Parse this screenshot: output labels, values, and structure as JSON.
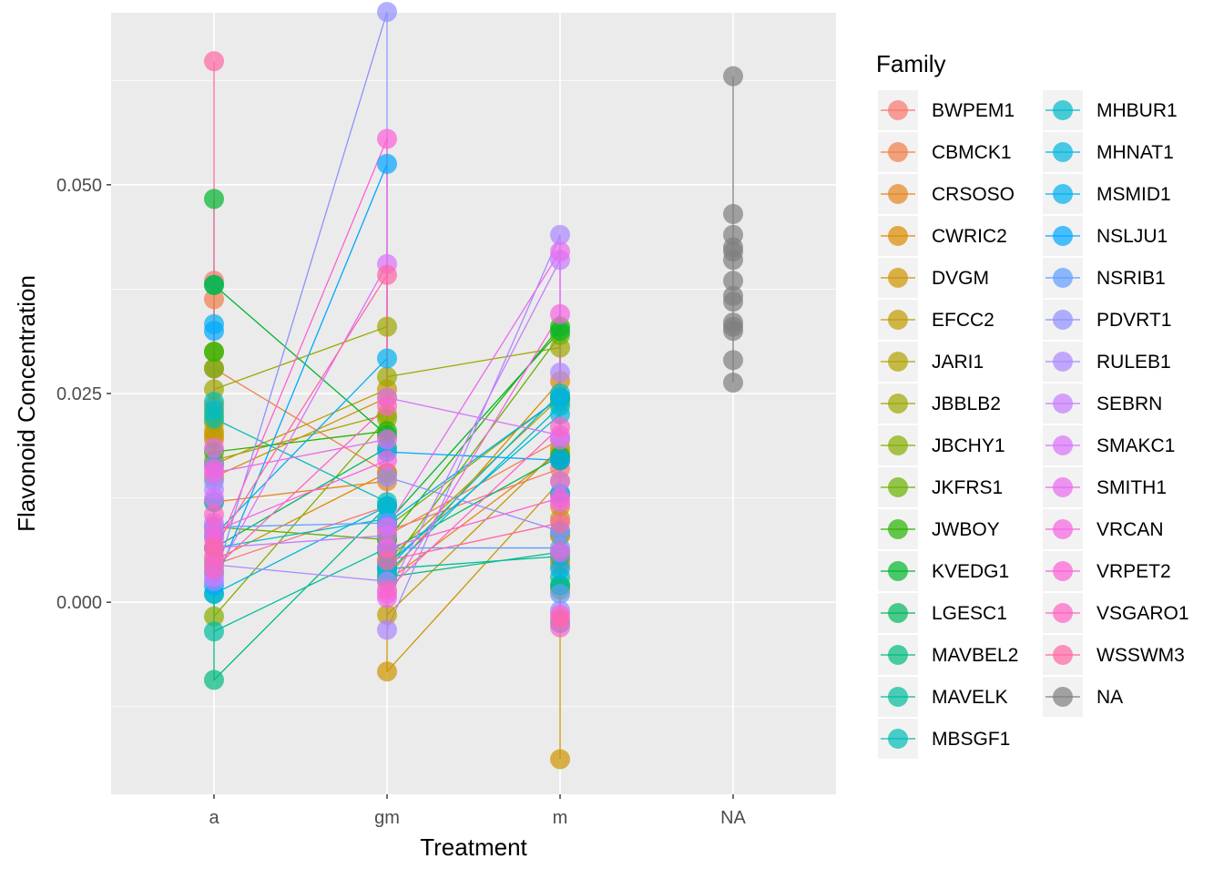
{
  "chart_data": {
    "type": "scatter",
    "style": "dot-plot with connecting lines per family",
    "xlabel": "Treatment",
    "ylabel": "Flavonoid Concentration",
    "x_categories": [
      "a",
      "gm",
      "m",
      "NA"
    ],
    "ylim": [
      -0.023,
      0.0706
    ],
    "y_ticks": [
      0.0,
      0.025,
      0.05
    ],
    "y_tick_labels": [
      "0.000",
      "0.025",
      "0.050"
    ],
    "grid": true,
    "panel_background": "#ebebeb",
    "grid_color": "#ffffff",
    "legend": {
      "title": "Family",
      "placement": "right",
      "columns": 2
    },
    "point_alpha": 0.7,
    "series": [
      {
        "name": "BWPEM1",
        "color": "#F8766D",
        "values": {
          "a": [
            0.0385,
            0.0045
          ],
          "gm": [
            0.0115,
            0.0085
          ],
          "m": [
            0.016,
            0.008
          ]
        }
      },
      {
        "name": "CBMCK1",
        "color": "#F07F48",
        "values": {
          "a": [
            0.0363,
            0.028
          ],
          "gm": [
            0.0155,
            0.008
          ],
          "m": [
            0.0195,
            0.0045
          ]
        }
      },
      {
        "name": "CRSOSO",
        "color": "#E7851E",
        "values": {
          "a": [
            0.0195,
            0.012
          ],
          "gm": [
            0.0145,
            0.0025
          ],
          "m": [
            0.0115,
            0.018
          ]
        }
      },
      {
        "name": "CWRIC2",
        "color": "#DC8A00",
        "values": {
          "a": [
            0.0235,
            0.005
          ],
          "gm": [
            0.0155,
            0.003
          ],
          "m": [
            0.0265,
            0.005
          ]
        }
      },
      {
        "name": "DVGM",
        "color": "#CF9400",
        "values": {
          "a": [
            0.0205,
            0.015
          ],
          "gm": [
            0.0245,
            -0.0083
          ],
          "m": [
            0.0145,
            -0.0188
          ]
        }
      },
      {
        "name": "EFCC2",
        "color": "#C09B00",
        "values": {
          "a": [
            0.0165,
            0.02
          ],
          "gm": [
            0.0255,
            -0.0015
          ],
          "m": [
            0.0185,
            0.01
          ]
        }
      },
      {
        "name": "JARI1",
        "color": "#B0A100",
        "values": {
          "a": [
            0.0215,
            0.017
          ],
          "gm": [
            0.0225,
            0.005
          ],
          "m": [
            0.0245,
            0.0015
          ]
        }
      },
      {
        "name": "JBBLB2",
        "color": "#9DA700",
        "values": {
          "a": [
            0.0255,
            0.03
          ],
          "gm": [
            0.033,
            0.027
          ],
          "m": [
            0.0305,
            0.008
          ]
        }
      },
      {
        "name": "JBCHY1",
        "color": "#86AC00",
        "values": {
          "a": [
            0.0225,
            -0.0017
          ],
          "gm": [
            0.022,
            0.009
          ],
          "m": [
            0.0245,
            0.0175
          ]
        }
      },
      {
        "name": "JKFRS1",
        "color": "#68B100",
        "values": {
          "a": [
            0.028,
            0.009
          ],
          "gm": [
            0.0075,
            0.004
          ],
          "m": [
            0.032,
            0.024
          ]
        }
      },
      {
        "name": "JWBOY",
        "color": "#28B400",
        "values": {
          "a": [
            0.03,
            0.018
          ],
          "gm": [
            0.0205,
            0.0075
          ],
          "m": [
            0.033,
            0.0245
          ]
        }
      },
      {
        "name": "KVEDG1",
        "color": "#00B62E",
        "values": {
          "a": [
            0.0483,
            0.038
          ],
          "gm": [
            0.02,
            0.0095
          ],
          "m": [
            0.0325,
            0.017
          ]
        }
      },
      {
        "name": "LGESC1",
        "color": "#00B85D",
        "values": {
          "a": [
            0.038,
            0.0065
          ],
          "gm": [
            0.0185,
            0.006
          ],
          "m": [
            0.0175,
            0.002
          ]
        }
      },
      {
        "name": "MAVBEL2",
        "color": "#00BA80",
        "values": {
          "a": [
            0.001,
            -0.0093
          ],
          "gm": [
            0.003,
            0.0115
          ],
          "m": [
            0.006,
            0.002
          ]
        }
      },
      {
        "name": "MAVELK",
        "color": "#00BC9C",
        "values": {
          "a": [
            -0.0035,
            0.0035
          ],
          "gm": [
            0.0065,
            0.004
          ],
          "m": [
            0.0055,
            0.003
          ]
        }
      },
      {
        "name": "MBSGF1",
        "color": "#00BCB5",
        "values": {
          "a": [
            0.022,
            0.024
          ],
          "gm": [
            0.012,
            0.0035
          ],
          "m": [
            0.0235,
            0.0085
          ]
        }
      },
      {
        "name": "MHBUR1",
        "color": "#00BACB",
        "values": {
          "a": [
            0.023,
            0.0065
          ],
          "gm": [
            0.004,
            0.01
          ],
          "m": [
            0.025,
            0.013
          ]
        }
      },
      {
        "name": "MHNAT1",
        "color": "#00B6DF",
        "values": {
          "a": [
            0.001,
            0.012
          ],
          "gm": [
            0.0115,
            0.0045
          ],
          "m": [
            0.013,
            0.0225
          ]
        }
      },
      {
        "name": "MSMID1",
        "color": "#00B0F0",
        "values": {
          "a": [
            0.0333,
            0.008
          ],
          "gm": [
            0.0292,
            0.0095
          ],
          "m": [
            0.0245,
            0.004
          ]
        }
      },
      {
        "name": "NSLJU1",
        "color": "#00A7FF",
        "values": {
          "a": [
            0.0325,
            0.002
          ],
          "gm": [
            0.0525,
            0.018
          ],
          "m": [
            0.017,
            -0.0025
          ]
        }
      },
      {
        "name": "NSRIB1",
        "color": "#619CFF",
        "values": {
          "a": [
            0.0165,
            0.009
          ],
          "gm": [
            0.0095,
            0.0065
          ],
          "m": [
            0.0065,
            0.001
          ]
        }
      },
      {
        "name": "PDVRT1",
        "color": "#9090FF",
        "values": {
          "a": [
            0.0145,
            0.0025
          ],
          "gm": [
            0.0707,
            0.015
          ],
          "m": [
            0.0085,
            -0.001
          ]
        }
      },
      {
        "name": "RULEB1",
        "color": "#AC88FF",
        "values": {
          "a": [
            0.0135,
            0.0045
          ],
          "gm": [
            0.0025,
            -0.0033
          ],
          "m": [
            0.044,
            0.0275
          ]
        }
      },
      {
        "name": "SEBRN",
        "color": "#C77CFF",
        "values": {
          "a": [
            0.0095,
            0.0065
          ],
          "gm": [
            0.001,
            0.008
          ],
          "m": [
            0.041,
            0.0195
          ]
        }
      },
      {
        "name": "SMAKC1",
        "color": "#DB72FB",
        "values": {
          "a": [
            0.0125,
            0.003
          ],
          "gm": [
            0.0405,
            0.0245
          ],
          "m": [
            0.02,
            0.0145
          ]
        }
      },
      {
        "name": "SMITH1",
        "color": "#EA6AEF",
        "values": {
          "a": [
            0.0185,
            0.0155
          ],
          "gm": [
            0.0195,
            0.009
          ],
          "m": [
            0.042,
            0.012
          ]
        }
      },
      {
        "name": "VRCAN",
        "color": "#F564E3",
        "values": {
          "a": [
            0.016,
            0.0085
          ],
          "gm": [
            0.017,
            0.0005
          ],
          "m": [
            0.0345,
            0.006
          ]
        }
      },
      {
        "name": "VRPET2",
        "color": "#FC61D5",
        "values": {
          "a": [
            0.0075,
            0.0055
          ],
          "gm": [
            0.0555,
            0.0065
          ],
          "m": [
            0.0125,
            -0.0015
          ]
        }
      },
      {
        "name": "VSGARO1",
        "color": "#FF62C3",
        "values": {
          "a": [
            0.0105,
            0.004
          ],
          "gm": [
            0.0235,
            0.0015
          ],
          "m": [
            0.021,
            -0.003
          ]
        }
      },
      {
        "name": "WSSWM3",
        "color": "#FF67A4",
        "values": {
          "a": [
            0.0648,
            0.0065
          ],
          "gm": [
            0.0392,
            0.005
          ],
          "m": [
            0.0095,
            -0.002
          ]
        }
      },
      {
        "name": "NA",
        "color": "#7F7F7F",
        "values": {
          "NA": [
            0.063,
            0.0465,
            0.044,
            0.0425,
            0.042,
            0.041,
            0.0385,
            0.0367,
            0.036,
            0.0335,
            0.033,
            0.0325,
            0.029,
            0.0263
          ]
        }
      }
    ]
  }
}
